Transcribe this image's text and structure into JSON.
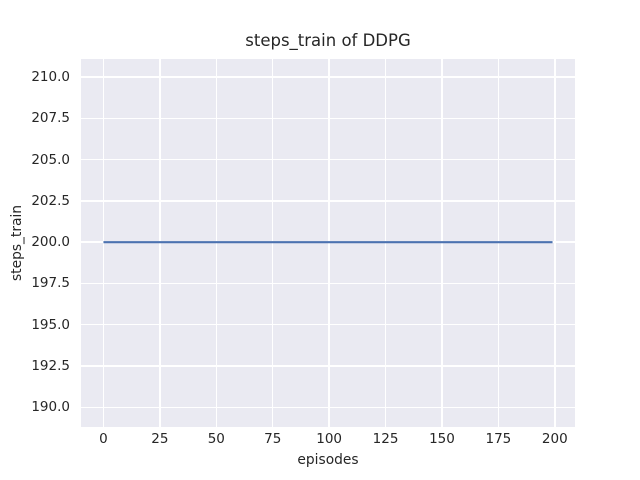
{
  "chart_data": {
    "type": "line",
    "title": "steps_train of DDPG",
    "xlabel": "episodes",
    "ylabel": "steps_train",
    "xlim": [
      -9.95,
      208.95
    ],
    "ylim": [
      188.8,
      211.1
    ],
    "xticks": [
      0,
      25,
      50,
      75,
      100,
      125,
      150,
      175,
      200
    ],
    "xtick_labels": [
      "0",
      "25",
      "50",
      "75",
      "100",
      "125",
      "150",
      "175",
      "200"
    ],
    "yticks": [
      190.0,
      192.5,
      195.0,
      197.5,
      200.0,
      202.5,
      205.0,
      207.5,
      210.0
    ],
    "ytick_labels": [
      "190.0",
      "192.5",
      "195.0",
      "197.5",
      "200.0",
      "202.5",
      "205.0",
      "207.5",
      "210.0"
    ],
    "grid": true,
    "style": "seaborn-darkgrid",
    "plot_background": "#eaeaf2",
    "grid_color": "#ffffff",
    "text_color": "#262626",
    "figure_background": "#ffffff",
    "series": [
      {
        "name": "steps_train",
        "color": "#4c72b0",
        "linewidth": 2.2,
        "x": [
          0,
          199
        ],
        "y": [
          200,
          200
        ]
      }
    ]
  }
}
